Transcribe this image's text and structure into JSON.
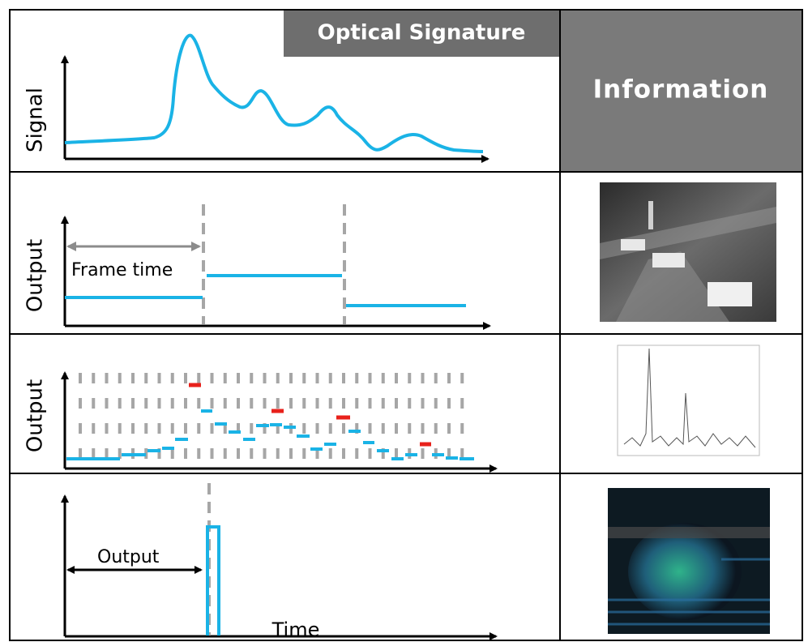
{
  "header": {
    "title": "Optical Signature",
    "info": "Information"
  },
  "rows": [
    {
      "y_label": "Signal"
    },
    {
      "y_label": "Output",
      "annotation": "Frame time"
    },
    {
      "y_label": "Output"
    },
    {
      "annotation": "Output",
      "x_label": "Time"
    }
  ]
}
